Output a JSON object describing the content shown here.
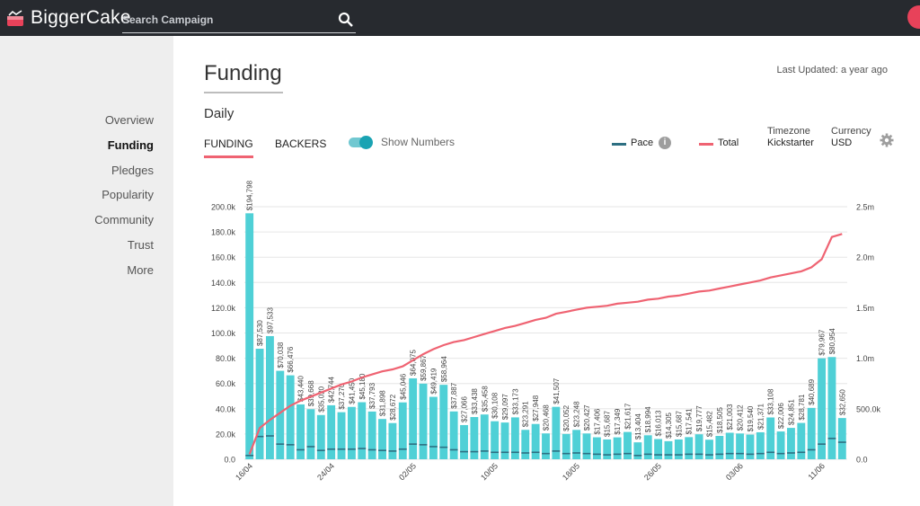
{
  "header": {
    "brand": "BiggerCake",
    "search_placeholder": "Search Campaign"
  },
  "sidebar": {
    "items": [
      {
        "label": "Overview",
        "active": false
      },
      {
        "label": "Funding",
        "active": true
      },
      {
        "label": "Pledges",
        "active": false
      },
      {
        "label": "Popularity",
        "active": false
      },
      {
        "label": "Community",
        "active": false
      },
      {
        "label": "Trust",
        "active": false
      },
      {
        "label": "More",
        "active": false
      }
    ]
  },
  "page": {
    "title": "Funding",
    "last_updated": "Last Updated: a year ago",
    "section": "Daily",
    "tabs": [
      "FUNDING",
      "BACKERS"
    ],
    "toggle_label": "Show Numbers",
    "legend": {
      "pace": "Pace",
      "total": "Total"
    },
    "timezone_label": "Timezone",
    "timezone_value": "Kickstarter",
    "currency_label": "Currency",
    "currency_value": "USD"
  },
  "colors": {
    "bar": "#4fd0d6",
    "pace": "#2d6f82",
    "total": "#ef6372"
  },
  "chart_data": {
    "type": "bar",
    "left_ticks": [
      "0.0",
      "20.0k",
      "40.0k",
      "60.0k",
      "80.0k",
      "100.0k",
      "120.0k",
      "140.0k",
      "160.0k",
      "180.0k",
      "200.0k"
    ],
    "right_ticks": [
      "0.0",
      "500.0k",
      "1.0m",
      "1.5m",
      "2.0m",
      "2.5m"
    ],
    "x_labels": [
      "16/04",
      "24/04",
      "02/05",
      "10/05",
      "18/05",
      "26/05",
      "03/06",
      "11/06"
    ],
    "ylim_left": [
      0,
      200000
    ],
    "ylim_right": [
      0,
      2500000
    ],
    "series": [
      {
        "name": "Funding",
        "values": [
          194798,
          87530,
          97533,
          70038,
          66476,
          43440,
          39668,
          35020,
          42744,
          37270,
          41450,
          45180,
          37793,
          31898,
          28672,
          45046,
          64075,
          59867,
          49419,
          58964,
          37887,
          27066,
          33438,
          35458,
          30108,
          29097,
          33173,
          23291,
          27948,
          20468,
          41507,
          20052,
          23248,
          20427,
          17406,
          15687,
          17349,
          21617,
          13404,
          18994,
          16013,
          14305,
          15687,
          17541,
          19777,
          15482,
          18505,
          21003,
          20412,
          19540,
          21371,
          33108,
          22006,
          24851,
          28781,
          40689,
          79967,
          80954,
          32650
        ],
        "labels": [
          "$194,798",
          "$87,530",
          "$97,533",
          "$70,038",
          "$66,476",
          "$43,440",
          "$39,668",
          "$35,020",
          "$42,744",
          "$37,270",
          "$41,450",
          "$45,180",
          "$37,793",
          "$31,898",
          "$28,672",
          "$45,046",
          "$64,075",
          "$59,867",
          "$49,419",
          "$58,964",
          "$37,887",
          "$27,066",
          "$33,438",
          "$35,458",
          "$30,108",
          "$29,097",
          "$33,173",
          "$23,291",
          "$27,948",
          "$20,468",
          "$41,507",
          "$20,052",
          "$23,248",
          "$20,427",
          "$17,406",
          "$15,687",
          "$17,349",
          "$21,617",
          "$13,404",
          "$18,994",
          "$16,013",
          "$14,305",
          "$15,687",
          "$17,541",
          "$19,777",
          "$15,482",
          "$18,505",
          "$21,003",
          "$20,412",
          "$19,540",
          "$21,371",
          "$33,108",
          "$22,006",
          "$24,851",
          "$28,781",
          "$40,689",
          "$79,967",
          "$80,954",
          "$32,650"
        ]
      },
      {
        "name": "Pace",
        "values": [
          3000,
          18000,
          18500,
          12000,
          11500,
          7500,
          10000,
          7000,
          8000,
          8000,
          8000,
          8500,
          7500,
          7000,
          6500,
          8000,
          12000,
          11500,
          10000,
          9500,
          7500,
          6000,
          6000,
          6500,
          5500,
          5500,
          5500,
          5000,
          5500,
          4500,
          6500,
          4500,
          5000,
          4500,
          4000,
          3500,
          4000,
          4500,
          3000,
          4000,
          3500,
          3500,
          3500,
          4000,
          4000,
          3500,
          4000,
          4500,
          4500,
          4000,
          4500,
          5500,
          4500,
          5000,
          5500,
          7500,
          12000,
          16500,
          13500
        ]
      },
      {
        "name": "Total",
        "values": [
          50000,
          310000,
          390000,
          460000,
          530000,
          580000,
          620000,
          660000,
          700000,
          740000,
          770000,
          810000,
          840000,
          870000,
          890000,
          920000,
          980000,
          1040000,
          1090000,
          1130000,
          1160000,
          1180000,
          1210000,
          1240000,
          1270000,
          1300000,
          1320000,
          1350000,
          1380000,
          1400000,
          1440000,
          1460000,
          1480000,
          1500000,
          1510000,
          1520000,
          1540000,
          1550000,
          1560000,
          1580000,
          1590000,
          1610000,
          1620000,
          1640000,
          1660000,
          1670000,
          1690000,
          1710000,
          1730000,
          1750000,
          1770000,
          1800000,
          1820000,
          1840000,
          1860000,
          1900000,
          1980000,
          2200000,
          2230000
        ]
      }
    ]
  }
}
